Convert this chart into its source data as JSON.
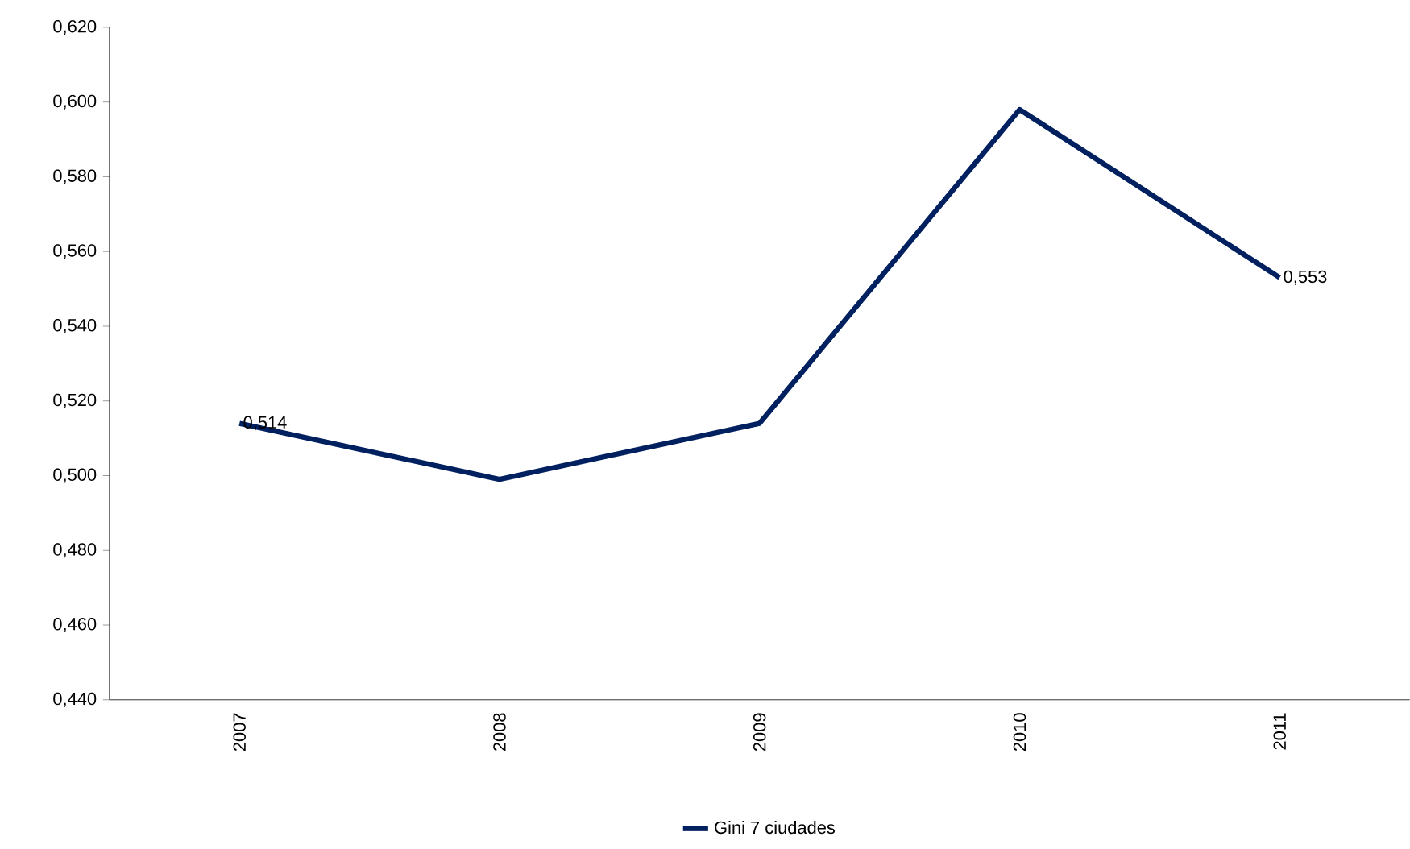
{
  "chart_data": {
    "type": "line",
    "categories": [
      "2007",
      "2008",
      "2009",
      "2010",
      "2011"
    ],
    "series": [
      {
        "name": "Gini 7 ciudades",
        "color": "#002060",
        "values": [
          0.514,
          0.499,
          0.514,
          0.598,
          0.553
        ],
        "value_labels": [
          "0,514",
          null,
          null,
          null,
          "0,553"
        ]
      }
    ],
    "ylim": [
      0.44,
      0.62
    ],
    "yticks": [
      {
        "value": 0.44,
        "label": "0,440"
      },
      {
        "value": 0.46,
        "label": "0,460"
      },
      {
        "value": 0.48,
        "label": "0,480"
      },
      {
        "value": 0.5,
        "label": "0,500"
      },
      {
        "value": 0.52,
        "label": "0,520"
      },
      {
        "value": 0.54,
        "label": "0,540"
      },
      {
        "value": 0.56,
        "label": "0,560"
      },
      {
        "value": 0.58,
        "label": "0,580"
      },
      {
        "value": 0.6,
        "label": "0,600"
      },
      {
        "value": 0.62,
        "label": "0,620"
      }
    ],
    "grid": false,
    "legend": "bottom",
    "marker": "none",
    "line_style": "solid"
  }
}
